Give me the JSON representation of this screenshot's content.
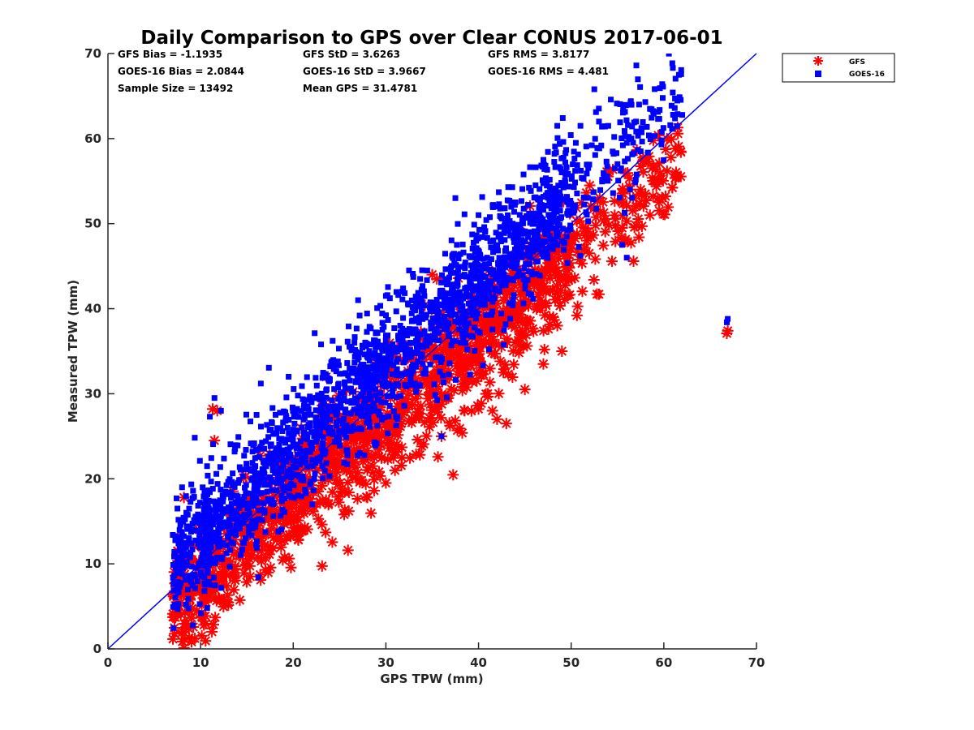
{
  "chart_data": {
    "type": "scatter",
    "title": "Daily Comparison to GPS over Clear CONUS 2017-06-01",
    "xlabel": "GPS TPW (mm)",
    "ylabel": "Measured TPW (mm)",
    "xlim": [
      0,
      70
    ],
    "ylim": [
      0,
      70
    ],
    "xticks": [
      "0",
      "10",
      "20",
      "30",
      "40",
      "50",
      "60",
      "70"
    ],
    "yticks": [
      "0",
      "10",
      "20",
      "30",
      "40",
      "50",
      "60",
      "70"
    ],
    "grid": false,
    "legend_position": "outside top-right",
    "stats": [
      [
        "GFS Bias = -1.1935",
        "GFS StD = 3.6263",
        "GFS RMS = 3.8177"
      ],
      [
        "GOES-16 Bias = 2.0844",
        "GOES-16 StD = 3.9667",
        "GOES-16 RMS = 4.481"
      ],
      [
        "Sample Size = 13492",
        "Mean GPS = 31.4781",
        ""
      ]
    ],
    "reference_line": {
      "x": [
        0,
        70
      ],
      "y": [
        0,
        70
      ],
      "color": "#0000ff"
    },
    "series": [
      {
        "name": "GFS",
        "marker": "asterisk",
        "color": "#ff0000",
        "cloud": {
          "x_range": [
            7,
            62
          ],
          "slope": 0.97,
          "intercept": -2.0,
          "spread": 3.4,
          "count": 1500
        },
        "points": [
          [
            7.5,
            11.5
          ],
          [
            7.8,
            8.7
          ],
          [
            8.2,
            17.8
          ],
          [
            11.3,
            28.2
          ],
          [
            11.8,
            28.0
          ],
          [
            11.5,
            24.5
          ],
          [
            12.6,
            9.7
          ],
          [
            17.0,
            10.7
          ],
          [
            21.0,
            14.0
          ],
          [
            23.5,
            13.7
          ],
          [
            25.5,
            15.8
          ],
          [
            26.0,
            16.2
          ],
          [
            28.0,
            17.8
          ],
          [
            30.0,
            19.5
          ],
          [
            36.0,
            25.0
          ],
          [
            38.5,
            28.0
          ],
          [
            40.0,
            28.2
          ],
          [
            41.5,
            28.0
          ],
          [
            42.0,
            27.0
          ],
          [
            43.0,
            26.5
          ],
          [
            41.0,
            30.0
          ],
          [
            45.0,
            30.5
          ],
          [
            47.0,
            33.5
          ],
          [
            49.0,
            35.0
          ],
          [
            35.0,
            44.0
          ],
          [
            35.5,
            43.5
          ],
          [
            44.5,
            37.0
          ],
          [
            48.5,
            38.0
          ],
          [
            53.0,
            41.7
          ],
          [
            52.0,
            54.5
          ],
          [
            54.0,
            56.0
          ],
          [
            55.5,
            49.5
          ],
          [
            56.0,
            50.3
          ],
          [
            57.5,
            54.0
          ],
          [
            58.0,
            53.5
          ],
          [
            59.0,
            55.0
          ],
          [
            57.0,
            52.0
          ],
          [
            58.5,
            51.0
          ],
          [
            57.8,
            57.5
          ],
          [
            61.5,
            61.3
          ],
          [
            66.8,
            37.1
          ],
          [
            66.9,
            37.4
          ]
        ]
      },
      {
        "name": "GOES-16",
        "marker": "square",
        "color": "#0000ff",
        "cloud": {
          "x_range": [
            7,
            62
          ],
          "slope": 1.02,
          "intercept": 2.8,
          "spread": 3.5,
          "count": 2200
        },
        "points": [
          [
            7.0,
            13.4
          ],
          [
            7.5,
            16.5
          ],
          [
            8.0,
            19.0
          ],
          [
            11.5,
            29.5
          ],
          [
            11.0,
            27.3
          ],
          [
            12.2,
            28.0
          ],
          [
            16.5,
            31.2
          ],
          [
            19.5,
            32.0
          ],
          [
            23.0,
            35.8
          ],
          [
            27.0,
            41.0
          ],
          [
            30.0,
            41.5
          ],
          [
            32.5,
            44.5
          ],
          [
            36.0,
            25.0
          ],
          [
            37.0,
            44.2
          ],
          [
            37.5,
            53.0
          ],
          [
            40.0,
            51.0
          ],
          [
            42.0,
            52.0
          ],
          [
            44.0,
            52.5
          ],
          [
            46.5,
            53.0
          ],
          [
            47.0,
            57.5
          ],
          [
            48.5,
            61.5
          ],
          [
            50.5,
            59.5
          ],
          [
            51.0,
            61.5
          ],
          [
            52.5,
            65.8
          ],
          [
            53.0,
            62.0
          ],
          [
            54.0,
            61.5
          ],
          [
            55.0,
            57.0
          ],
          [
            56.5,
            60.0
          ],
          [
            57.0,
            62.0
          ],
          [
            58.0,
            64.3
          ],
          [
            58.5,
            63.5
          ],
          [
            61.0,
            62.8
          ],
          [
            55.5,
            47.5
          ],
          [
            56.0,
            46.0
          ],
          [
            66.8,
            38.4
          ],
          [
            66.9,
            38.8
          ],
          [
            57.5,
            58.5
          ],
          [
            56.0,
            59.5
          ]
        ]
      }
    ]
  }
}
